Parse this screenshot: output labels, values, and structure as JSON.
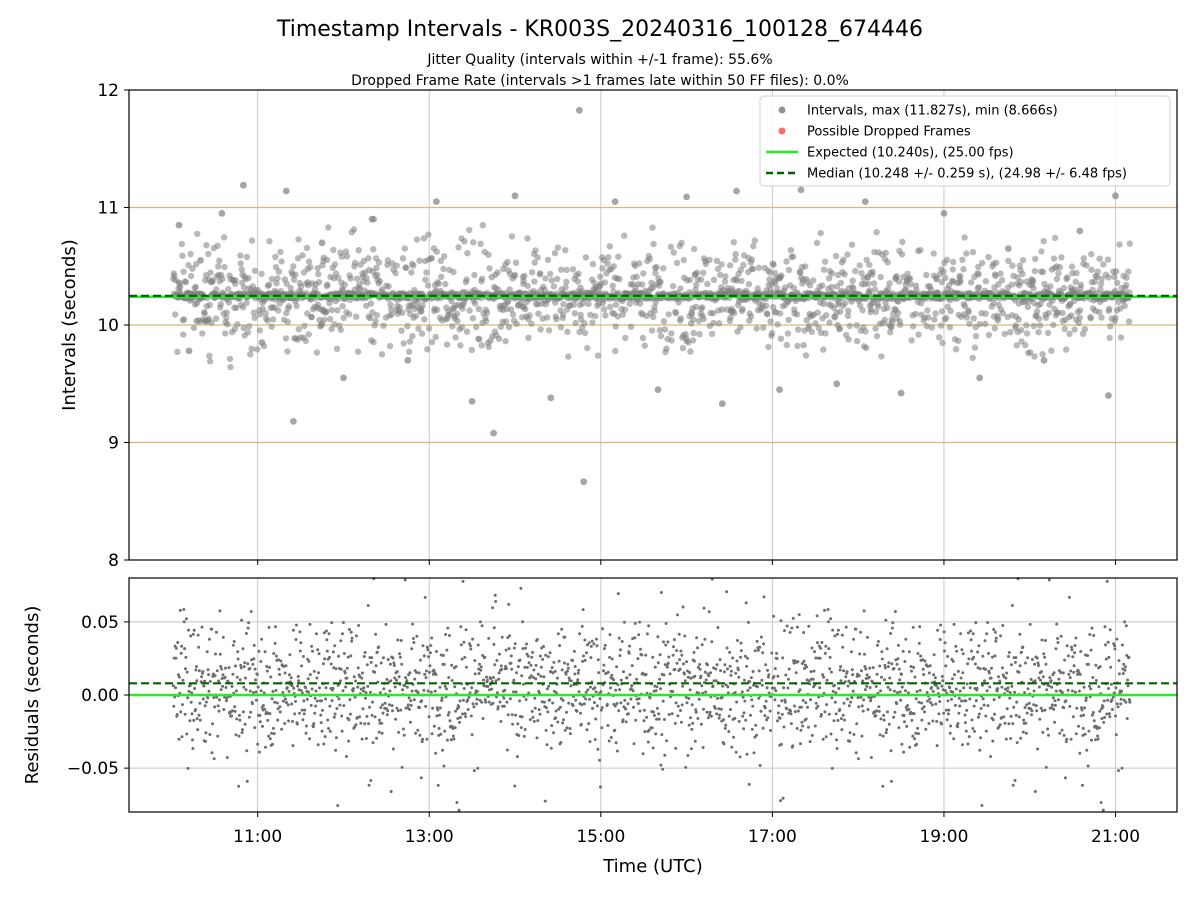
{
  "title": "Timestamp Intervals - KR003S_20240316_100128_674446",
  "subtitle_1": "Jitter Quality (intervals within +/-1 frame): 55.6%",
  "subtitle_2": "Dropped Frame Rate (intervals >1 frames late within 50 FF files): 0.0%",
  "chart_data": [
    {
      "type": "scatter",
      "ylabel": "Intervals (seconds)",
      "ylim": [
        8,
        12
      ],
      "yticks": [
        "8",
        "9",
        "10",
        "11",
        "12"
      ],
      "x_range_utc": [
        "09:30",
        "21:43"
      ],
      "data_time_range_utc": [
        "10:01",
        "21:10"
      ],
      "reference_lines": {
        "expected": 10.24,
        "median": 10.248,
        "frame_bands": [
          9,
          10,
          11
        ]
      },
      "legend_position": "top-right",
      "legend": [
        {
          "label": "Intervals, max (11.827s), min (8.666s)",
          "marker": "circle",
          "color": "#808080"
        },
        {
          "label": "Possible Dropped Frames",
          "marker": "circle",
          "color": "#ff5050"
        },
        {
          "label": "Expected (10.240s), (25.00 fps)",
          "marker": "solid-line",
          "color": "#22ee22"
        },
        {
          "label": "Median (10.248 +/- 0.259 s), (24.98 +/- 6.48 fps)",
          "marker": "dashed-line",
          "color": "#006400"
        }
      ],
      "series": [
        {
          "name": "Intervals, max (11.827s), min (8.666s)",
          "sampled_points": [
            {
              "t": "10:05",
              "y": 10.85
            },
            {
              "t": "10:12",
              "y": 9.78
            },
            {
              "t": "10:20",
              "y": 10.55
            },
            {
              "t": "10:35",
              "y": 10.95
            },
            {
              "t": "10:50",
              "y": 11.19
            },
            {
              "t": "11:03",
              "y": 9.85
            },
            {
              "t": "11:20",
              "y": 11.14
            },
            {
              "t": "11:25",
              "y": 9.18
            },
            {
              "t": "11:45",
              "y": 10.7
            },
            {
              "t": "12:00",
              "y": 9.55
            },
            {
              "t": "12:20",
              "y": 10.9
            },
            {
              "t": "12:45",
              "y": 9.7
            },
            {
              "t": "13:05",
              "y": 11.05
            },
            {
              "t": "13:30",
              "y": 9.35
            },
            {
              "t": "13:45",
              "y": 9.08
            },
            {
              "t": "14:00",
              "y": 11.1
            },
            {
              "t": "14:25",
              "y": 9.38
            },
            {
              "t": "14:45",
              "y": 11.827
            },
            {
              "t": "14:48",
              "y": 8.666
            },
            {
              "t": "15:10",
              "y": 11.05
            },
            {
              "t": "15:40",
              "y": 9.45
            },
            {
              "t": "16:00",
              "y": 11.09
            },
            {
              "t": "16:25",
              "y": 9.33
            },
            {
              "t": "16:35",
              "y": 11.14
            },
            {
              "t": "17:05",
              "y": 9.45
            },
            {
              "t": "17:20",
              "y": 11.15
            },
            {
              "t": "17:45",
              "y": 9.5
            },
            {
              "t": "18:05",
              "y": 11.05
            },
            {
              "t": "18:30",
              "y": 9.42
            },
            {
              "t": "19:00",
              "y": 10.95
            },
            {
              "t": "19:25",
              "y": 9.55
            },
            {
              "t": "19:45",
              "y": 10.65
            },
            {
              "t": "20:10",
              "y": 9.7
            },
            {
              "t": "20:35",
              "y": 10.8
            },
            {
              "t": "20:55",
              "y": 9.4
            },
            {
              "t": "21:00",
              "y": 11.1
            }
          ]
        }
      ]
    },
    {
      "type": "scatter",
      "xlabel": "Time (UTC)",
      "ylabel": "Residuals (seconds)",
      "ylim": [
        -0.08,
        0.08
      ],
      "yticks": [
        "−0.05",
        "0.00",
        "0.05"
      ],
      "xticks": [
        "11:00",
        "13:00",
        "15:00",
        "17:00",
        "19:00",
        "21:00"
      ],
      "x_range_utc": [
        "09:30",
        "21:43"
      ],
      "reference_lines": {
        "expected": 0.0,
        "median": 0.008
      },
      "series": [
        {
          "name": "Residuals",
          "note_points_spread": [
            -0.08,
            0.08
          ],
          "dense_core": [
            -0.03,
            0.04
          ]
        }
      ]
    }
  ],
  "colors": {
    "points": "#808080",
    "expected": "#22ee22",
    "median": "#006400",
    "frame_band": "#d8b879",
    "grid": "#c8c8c8",
    "dropped": "#ff5050"
  }
}
